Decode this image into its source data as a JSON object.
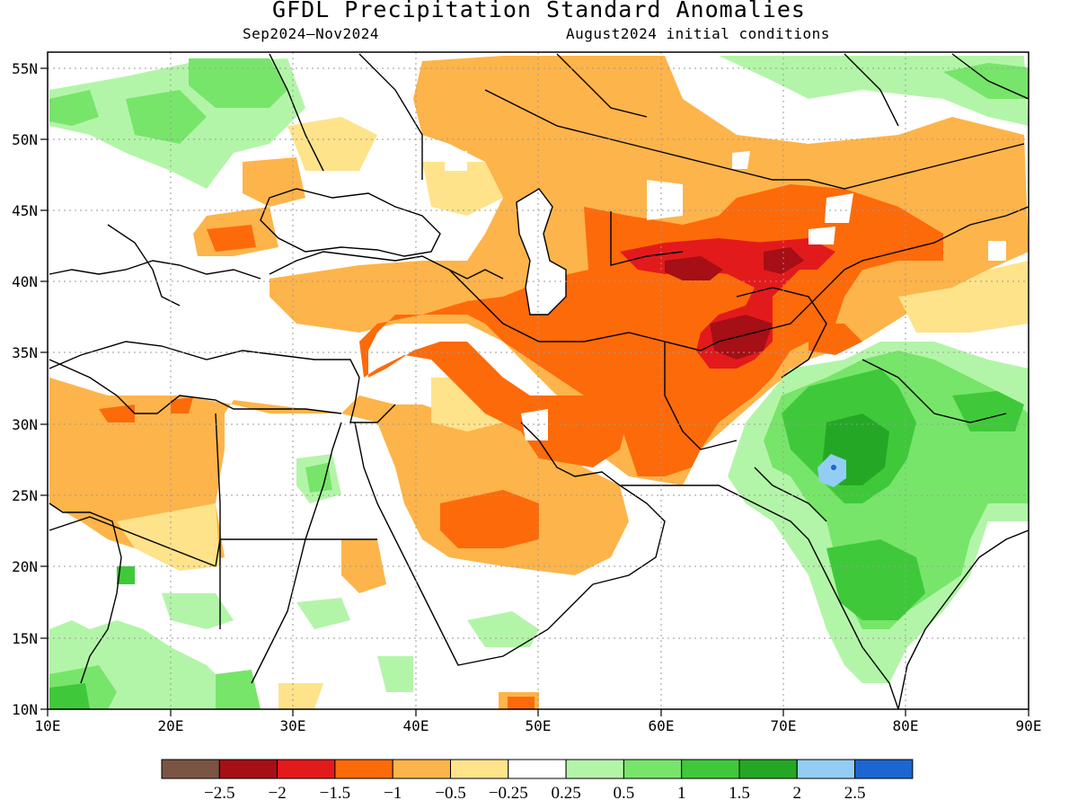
{
  "title": "GFDL Precipitation Standard Anomalies",
  "subtitle_left": "Sep2024–Nov2024",
  "subtitle_right": "August2024 initial conditions",
  "lat_labels": [
    "55N",
    "50N",
    "45N",
    "40N",
    "35N",
    "30N",
    "25N",
    "20N",
    "15N",
    "10N"
  ],
  "lon_labels": [
    "10E",
    "20E",
    "30E",
    "40E",
    "50E",
    "60E",
    "70E",
    "80E",
    "90E"
  ],
  "colorbar": {
    "colors": [
      "#7a5544",
      "#a50f15",
      "#e31a1c",
      "#fd6a0a",
      "#fdb44a",
      "#fee38b",
      "#ffffff",
      "#b3f5a8",
      "#77e56a",
      "#3fc93a",
      "#25a726",
      "#93cdf3",
      "#1c66d1"
    ],
    "labels": [
      "−2.5",
      "−2",
      "−1.5",
      "−1",
      "−0.5",
      "−0.25",
      "0.25",
      "0.5",
      "1",
      "1.5",
      "2",
      "2.5"
    ]
  }
}
